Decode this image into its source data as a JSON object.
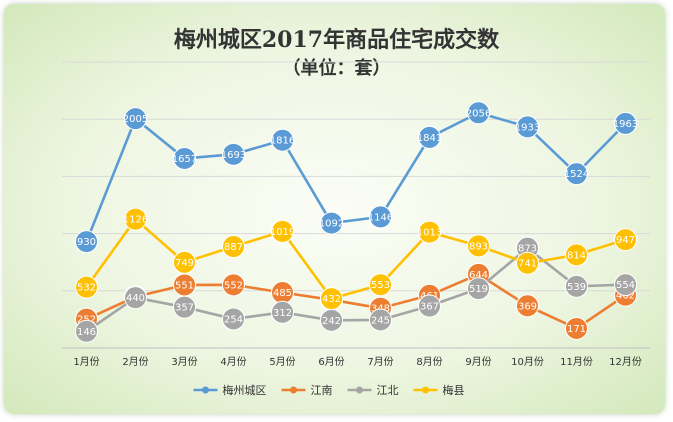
{
  "chart_data": {
    "type": "line",
    "title": "梅州城区2017年商品住宅成交数",
    "subtitle": "（单位：套）",
    "categories": [
      "1月份",
      "2月份",
      "3月份",
      "4月份",
      "5月份",
      "6月份",
      "7月份",
      "8月份",
      "9月份",
      "10月份",
      "11月份",
      "12月份"
    ],
    "series": [
      {
        "name": "梅州城区",
        "color": "#5b9bd5",
        "values": [
          930,
          2005,
          1657,
          1693,
          1816,
          1092,
          1146,
          1841,
          2056,
          1933,
          1524,
          1963
        ]
      },
      {
        "name": "江南",
        "color": "#ed7d31",
        "values": [
          252,
          448,
          551,
          552,
          485,
          421,
          348,
          461,
          644,
          369,
          171,
          462
        ]
      },
      {
        "name": "江北",
        "color": "#a5a5a5",
        "values": [
          146,
          440,
          357,
          254,
          312,
          242,
          245,
          367,
          519,
          873,
          539,
          554
        ]
      },
      {
        "name": "梅县",
        "color": "#ffc000",
        "values": [
          532,
          1126,
          749,
          887,
          1019,
          432,
          553,
          1013,
          893,
          741,
          814,
          947
        ]
      }
    ],
    "ylim": [
      0,
      2500
    ],
    "grid": true,
    "legend_position": "bottom"
  }
}
